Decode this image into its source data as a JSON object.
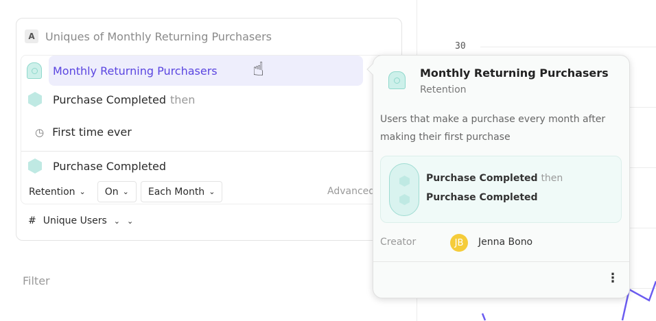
{
  "chart": {
    "y_tick": "30",
    "line_color": "#6b5cf0"
  },
  "query": {
    "badge": "A",
    "title": "Uniques of Monthly Returning Purchasers",
    "selected_cohort": "Monthly Returning Purchasers",
    "step1_event": "Purchase Completed",
    "step1_suffix": "then",
    "first_time": "First time ever",
    "step2_event": "Purchase Completed",
    "dropdowns": {
      "retention": "Retention",
      "on": "On",
      "each_month": "Each Month"
    },
    "advanced": "Advanced",
    "measure": {
      "prefix": "#",
      "label": "Unique Users"
    }
  },
  "filter_label": "Filter",
  "popover": {
    "title": "Monthly Returning Purchasers",
    "subtitle": "Retention",
    "description": "Users that make a purchase every month after making their first purchase",
    "step1": "Purchase Completed",
    "step1_suffix": "then",
    "step2": "Purchase Completed",
    "creator_label": "Creator",
    "creator_initials": "JB",
    "creator_name": "Jenna Bono",
    "avatar_color": "#f5cc3a"
  },
  "colors": {
    "accent": "#5a45e0",
    "highlight": "#eeeefc",
    "teal": "#bfe9e3"
  }
}
